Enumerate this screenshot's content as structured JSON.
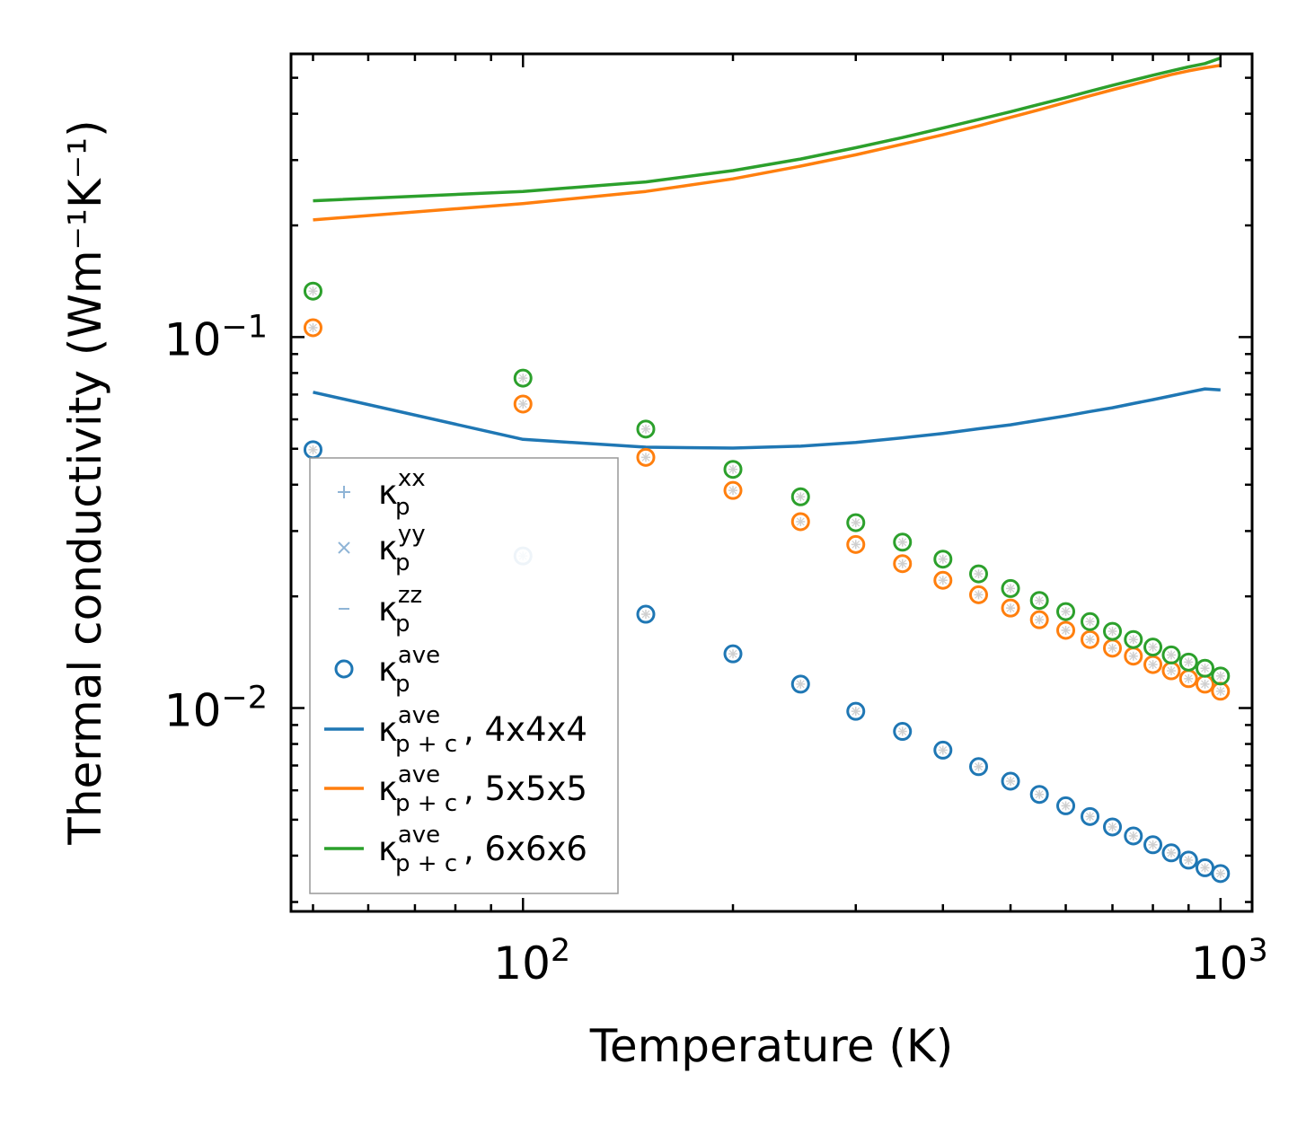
{
  "chart_data": {
    "type": "line",
    "xlabel": "Temperature (K)",
    "ylabel": "Thermal conductivity (Wm⁻¹K⁻¹)",
    "xscale": "log",
    "yscale": "log",
    "xlim": [
      46.5,
      1110
    ],
    "ylim": [
      0.00283,
      0.58
    ],
    "x_ticks": [
      {
        "value": 100,
        "base": "10",
        "exp": "2"
      },
      {
        "value": 1000,
        "base": "10",
        "exp": "3"
      }
    ],
    "y_ticks": [
      {
        "value": 0.01,
        "base": "10",
        "exp": "−2"
      },
      {
        "value": 0.1,
        "base": "10",
        "exp": "−1"
      }
    ],
    "x": [
      50,
      100,
      150,
      200,
      250,
      300,
      350,
      400,
      450,
      500,
      550,
      600,
      650,
      700,
      750,
      800,
      850,
      900,
      950,
      1000
    ],
    "lines": [
      {
        "key": "k44",
        "name": "4x4x4",
        "color": "#1f77b4",
        "values": [
          0.071,
          0.053,
          0.0505,
          0.0502,
          0.0508,
          0.052,
          0.0535,
          0.055,
          0.0566,
          0.058,
          0.0597,
          0.0613,
          0.063,
          0.0645,
          0.0662,
          0.0678,
          0.0694,
          0.071,
          0.0725,
          0.072
        ]
      },
      {
        "key": "k55",
        "name": "5x5x5",
        "color": "#ff7f0e",
        "values": [
          0.207,
          0.229,
          0.247,
          0.267,
          0.289,
          0.31,
          0.331,
          0.351,
          0.371,
          0.391,
          0.41,
          0.429,
          0.447,
          0.464,
          0.48,
          0.495,
          0.51,
          0.522,
          0.532,
          0.54
        ]
      },
      {
        "key": "k66",
        "name": "6x6x6",
        "color": "#2ca02c",
        "values": [
          0.233,
          0.247,
          0.262,
          0.281,
          0.302,
          0.324,
          0.345,
          0.366,
          0.386,
          0.405,
          0.424,
          0.442,
          0.46,
          0.477,
          0.493,
          0.508,
          0.522,
          0.535,
          0.546,
          0.565
        ]
      }
    ],
    "scatter_series": [
      {
        "key": "s44",
        "color": "#1f77b4",
        "values": [
          0.0497,
          0.0257,
          0.0179,
          0.014,
          0.0116,
          0.0098,
          0.00865,
          0.0077,
          0.00695,
          0.00635,
          0.00585,
          0.00545,
          0.0051,
          0.00478,
          0.00452,
          0.00428,
          0.00407,
          0.00389,
          0.00371,
          0.00358
        ],
        "faded_index": 1
      },
      {
        "key": "s55",
        "color": "#ff7f0e",
        "values": [
          0.106,
          0.066,
          0.0474,
          0.0386,
          0.0318,
          0.0276,
          0.0245,
          0.0221,
          0.0202,
          0.0186,
          0.0173,
          0.0162,
          0.0153,
          0.0145,
          0.0138,
          0.0131,
          0.0126,
          0.012,
          0.0116,
          0.0111
        ],
        "faded_index": null
      },
      {
        "key": "s66",
        "color": "#2ca02c",
        "values": [
          0.133,
          0.0775,
          0.0565,
          0.044,
          0.0371,
          0.0316,
          0.028,
          0.0252,
          0.023,
          0.021,
          0.0195,
          0.0182,
          0.0171,
          0.0161,
          0.0153,
          0.0146,
          0.0139,
          0.0133,
          0.0128,
          0.0122
        ],
        "faded_index": null
      }
    ],
    "legend": {
      "placement": "lower-left",
      "entries": [
        {
          "marker": "plus",
          "color": "#8fb4d6",
          "base": "κ",
          "sub": "p",
          "sup": "xx",
          "suffix": ""
        },
        {
          "marker": "x",
          "color": "#8fb4d6",
          "base": "κ",
          "sub": "p",
          "sup": "yy",
          "suffix": ""
        },
        {
          "marker": "dash",
          "color": "#8fb4d6",
          "base": "κ",
          "sub": "p",
          "sup": "zz",
          "suffix": ""
        },
        {
          "marker": "circle",
          "color": "#1f77b4",
          "base": "κ",
          "sub": "p",
          "sup": "ave",
          "suffix": ""
        },
        {
          "marker": "line",
          "color": "#1f77b4",
          "base": "κ",
          "sub": "p + c",
          "sup": "ave",
          "suffix": ", 4x4x4"
        },
        {
          "marker": "line",
          "color": "#ff7f0e",
          "base": "κ",
          "sub": "p + c",
          "sup": "ave",
          "suffix": ", 5x5x5"
        },
        {
          "marker": "line",
          "color": "#2ca02c",
          "base": "κ",
          "sub": "p + c",
          "sup": "ave",
          "suffix": ", 6x6x6"
        }
      ]
    }
  }
}
